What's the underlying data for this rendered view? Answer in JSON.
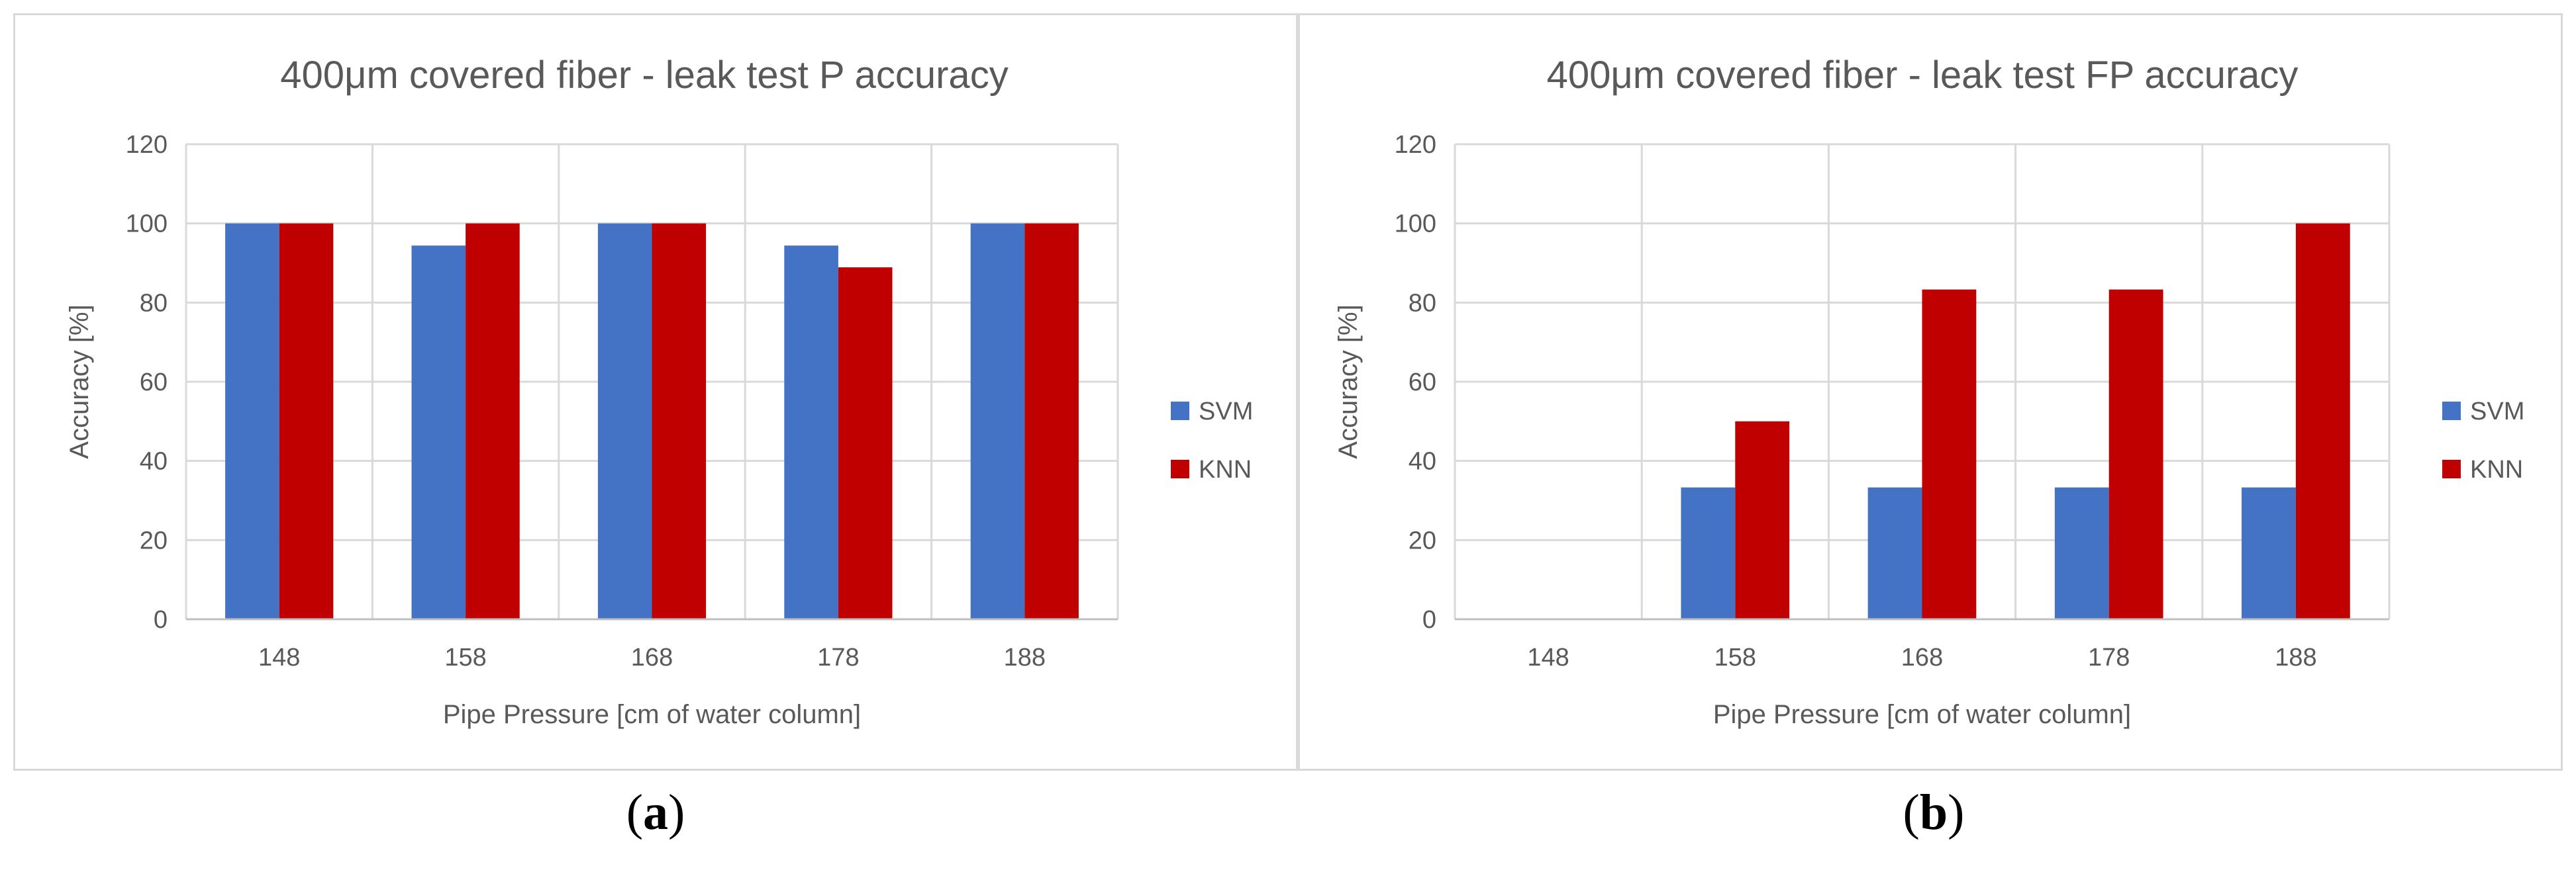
{
  "chart_data": [
    {
      "type": "bar",
      "title": "400μm covered fiber - leak test P accuracy",
      "xlabel": "Pipe Pressure [cm of water column]",
      "ylabel": "Accuracy [%]",
      "categories": [
        "148",
        "158",
        "168",
        "178",
        "188"
      ],
      "ylim": [
        0,
        120
      ],
      "yticks": [
        "0",
        "20",
        "40",
        "60",
        "80",
        "100",
        "120"
      ],
      "grid": true,
      "legend_position": "right",
      "series": [
        {
          "name": "SVM",
          "color": "#4472c4",
          "values": [
            100,
            94.4,
            100,
            94.4,
            100
          ]
        },
        {
          "name": "KNN",
          "color": "#c00000",
          "values": [
            100,
            100,
            100,
            88.9,
            100
          ]
        }
      ]
    },
    {
      "type": "bar",
      "title": "400μm covered fiber - leak test FP accuracy",
      "xlabel": "Pipe Pressure [cm of water column]",
      "ylabel": "Accuracy [%]",
      "categories": [
        "148",
        "158",
        "168",
        "178",
        "188"
      ],
      "ylim": [
        0,
        120
      ],
      "yticks": [
        "0",
        "20",
        "40",
        "60",
        "80",
        "100",
        "120"
      ],
      "grid": true,
      "legend_position": "right",
      "series": [
        {
          "name": "SVM",
          "color": "#4472c4",
          "values": [
            0,
            33.3,
            33.3,
            33.3,
            33.3
          ]
        },
        {
          "name": "KNN",
          "color": "#c00000",
          "values": [
            0,
            50,
            83.3,
            83.3,
            100
          ]
        }
      ]
    }
  ],
  "captions": {
    "a": {
      "open": "(",
      "letter": "a",
      "close": ")"
    },
    "b": {
      "open": "(",
      "letter": "b",
      "close": ")"
    }
  }
}
